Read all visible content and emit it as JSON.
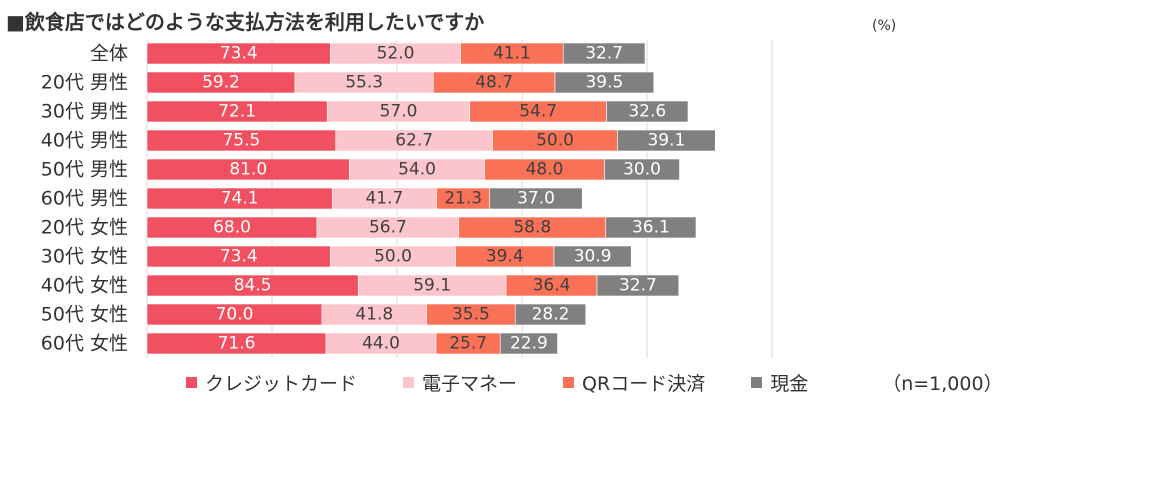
{
  "title": "■飲食店ではどのような支払方法を利用したいですか",
  "unit": "(%)",
  "note": "（n=1,000）",
  "colors": {
    "credit": "#f05060",
    "emoney": "#fcc5cb",
    "qr": "#f97258",
    "cash": "#808080"
  },
  "chart_data": {
    "type": "bar",
    "orientation": "horizontal",
    "stacked": true,
    "title": "■飲食店ではどのような支払方法を利用したいですか",
    "unit": "(%)",
    "categories": [
      "全体",
      "20代 男性",
      "30代 男性",
      "40代 男性",
      "50代 男性",
      "60代 男性",
      "20代 女性",
      "30代 女性",
      "40代 女性",
      "50代 女性",
      "60代 女性"
    ],
    "series": [
      {
        "name": "クレジットカード",
        "color": "#f05060",
        "label_color": "#ffffff",
        "values": [
          73.4,
          59.2,
          72.1,
          75.5,
          81.0,
          74.1,
          68.0,
          73.4,
          84.5,
          70.0,
          71.6
        ]
      },
      {
        "name": "電子マネー",
        "color": "#fcc5cb",
        "label_color": "#404040",
        "values": [
          52.0,
          55.3,
          57.0,
          62.7,
          54.0,
          41.7,
          56.7,
          50.0,
          59.1,
          41.8,
          44.0
        ]
      },
      {
        "name": "QRコード決済",
        "color": "#f97258",
        "label_color": "#404040",
        "values": [
          41.1,
          48.7,
          54.7,
          50.0,
          48.0,
          21.3,
          58.8,
          39.4,
          36.4,
          35.5,
          25.7
        ]
      },
      {
        "name": "現金",
        "color": "#808080",
        "label_color": "#ffffff",
        "values": [
          32.7,
          39.5,
          32.6,
          39.1,
          30.0,
          37.0,
          36.1,
          30.9,
          32.7,
          28.2,
          22.9
        ]
      }
    ],
    "xlim": [
      0,
      250
    ],
    "grid": true,
    "legend_position": "bottom",
    "sample_size_note": "（n=1,000）"
  }
}
